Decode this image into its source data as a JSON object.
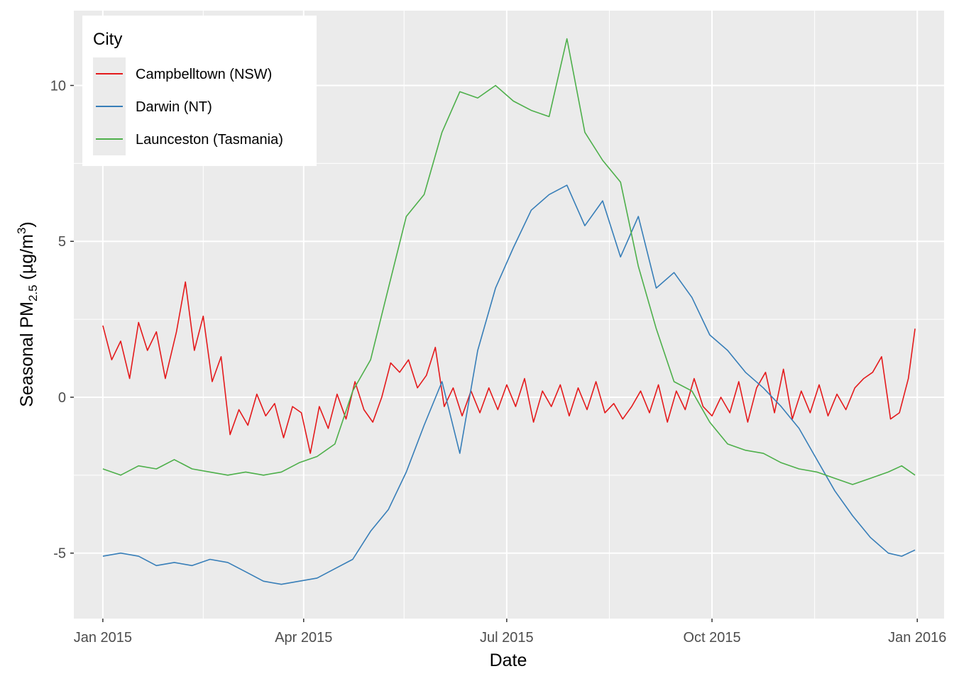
{
  "chart_data": {
    "type": "line",
    "xlabel": "Date",
    "ylabel": "Seasonal PM",
    "ylabel_sub": "2.5",
    "ylabel_unit_prefix": " (µg/m",
    "ylabel_unit_sup": "3",
    "ylabel_unit_suffix": ")",
    "xlim": [
      "2014-12-19",
      "2016-01-13"
    ],
    "ylim": [
      -7.1,
      12.4
    ],
    "x_ticks": [
      {
        "date": "2015-01-01",
        "label": "Jan 2015"
      },
      {
        "date": "2015-04-01",
        "label": "Apr 2015"
      },
      {
        "date": "2015-07-01",
        "label": "Jul 2015"
      },
      {
        "date": "2015-10-01",
        "label": "Oct 2015"
      },
      {
        "date": "2016-01-01",
        "label": "Jan 2016"
      }
    ],
    "x_minor_ticks": [
      "2015-02-15",
      "2015-05-16",
      "2015-08-16",
      "2015-11-16"
    ],
    "y_ticks": [
      -5,
      0,
      5,
      10
    ],
    "y_minor_ticks": [
      -2.5,
      2.5,
      7.5
    ],
    "grid": true,
    "legend": {
      "title": "City",
      "position": "top-left"
    },
    "series": [
      {
        "name": "Campbelltown (NSW)",
        "color": "#e41a1c",
        "points": [
          [
            "2015-01-01",
            2.3
          ],
          [
            "2015-01-05",
            1.2
          ],
          [
            "2015-01-09",
            1.8
          ],
          [
            "2015-01-13",
            0.6
          ],
          [
            "2015-01-17",
            2.4
          ],
          [
            "2015-01-21",
            1.5
          ],
          [
            "2015-01-25",
            2.1
          ],
          [
            "2015-01-29",
            0.6
          ],
          [
            "2015-02-03",
            2.1
          ],
          [
            "2015-02-07",
            3.7
          ],
          [
            "2015-02-11",
            1.5
          ],
          [
            "2015-02-15",
            2.6
          ],
          [
            "2015-02-19",
            0.5
          ],
          [
            "2015-02-23",
            1.3
          ],
          [
            "2015-02-27",
            -1.2
          ],
          [
            "2015-03-03",
            -0.4
          ],
          [
            "2015-03-07",
            -0.9
          ],
          [
            "2015-03-11",
            0.1
          ],
          [
            "2015-03-15",
            -0.6
          ],
          [
            "2015-03-19",
            -0.2
          ],
          [
            "2015-03-23",
            -1.3
          ],
          [
            "2015-03-27",
            -0.3
          ],
          [
            "2015-03-31",
            -0.5
          ],
          [
            "2015-04-04",
            -1.8
          ],
          [
            "2015-04-08",
            -0.3
          ],
          [
            "2015-04-12",
            -1.0
          ],
          [
            "2015-04-16",
            0.1
          ],
          [
            "2015-04-20",
            -0.7
          ],
          [
            "2015-04-24",
            0.5
          ],
          [
            "2015-04-28",
            -0.4
          ],
          [
            "2015-05-02",
            -0.8
          ],
          [
            "2015-05-06",
            0.0
          ],
          [
            "2015-05-10",
            1.1
          ],
          [
            "2015-05-14",
            0.8
          ],
          [
            "2015-05-18",
            1.2
          ],
          [
            "2015-05-22",
            0.3
          ],
          [
            "2015-05-26",
            0.7
          ],
          [
            "2015-05-30",
            1.6
          ],
          [
            "2015-06-03",
            -0.3
          ],
          [
            "2015-06-07",
            0.3
          ],
          [
            "2015-06-11",
            -0.6
          ],
          [
            "2015-06-15",
            0.2
          ],
          [
            "2015-06-19",
            -0.5
          ],
          [
            "2015-06-23",
            0.3
          ],
          [
            "2015-06-27",
            -0.4
          ],
          [
            "2015-07-01",
            0.4
          ],
          [
            "2015-07-05",
            -0.3
          ],
          [
            "2015-07-09",
            0.6
          ],
          [
            "2015-07-13",
            -0.8
          ],
          [
            "2015-07-17",
            0.2
          ],
          [
            "2015-07-21",
            -0.3
          ],
          [
            "2015-07-25",
            0.4
          ],
          [
            "2015-07-29",
            -0.6
          ],
          [
            "2015-08-02",
            0.3
          ],
          [
            "2015-08-06",
            -0.4
          ],
          [
            "2015-08-10",
            0.5
          ],
          [
            "2015-08-14",
            -0.5
          ],
          [
            "2015-08-18",
            -0.2
          ],
          [
            "2015-08-22",
            -0.7
          ],
          [
            "2015-08-26",
            -0.3
          ],
          [
            "2015-08-30",
            0.2
          ],
          [
            "2015-09-03",
            -0.5
          ],
          [
            "2015-09-07",
            0.4
          ],
          [
            "2015-09-11",
            -0.8
          ],
          [
            "2015-09-15",
            0.2
          ],
          [
            "2015-09-19",
            -0.4
          ],
          [
            "2015-09-23",
            0.6
          ],
          [
            "2015-09-27",
            -0.3
          ],
          [
            "2015-10-01",
            -0.6
          ],
          [
            "2015-10-05",
            0.0
          ],
          [
            "2015-10-09",
            -0.5
          ],
          [
            "2015-10-13",
            0.5
          ],
          [
            "2015-10-17",
            -0.8
          ],
          [
            "2015-10-21",
            0.3
          ],
          [
            "2015-10-25",
            0.8
          ],
          [
            "2015-10-29",
            -0.5
          ],
          [
            "2015-11-02",
            0.9
          ],
          [
            "2015-11-06",
            -0.7
          ],
          [
            "2015-11-10",
            0.2
          ],
          [
            "2015-11-14",
            -0.5
          ],
          [
            "2015-11-18",
            0.4
          ],
          [
            "2015-11-22",
            -0.6
          ],
          [
            "2015-11-26",
            0.1
          ],
          [
            "2015-11-30",
            -0.4
          ],
          [
            "2015-12-04",
            0.3
          ],
          [
            "2015-12-08",
            0.6
          ],
          [
            "2015-12-12",
            0.8
          ],
          [
            "2015-12-16",
            1.3
          ],
          [
            "2015-12-20",
            -0.7
          ],
          [
            "2015-12-24",
            -0.5
          ],
          [
            "2015-12-28",
            0.6
          ],
          [
            "2015-12-31",
            2.2
          ]
        ]
      },
      {
        "name": "Darwin (NT)",
        "color": "#377eb8",
        "points": [
          [
            "2015-01-01",
            -5.1
          ],
          [
            "2015-01-09",
            -5.0
          ],
          [
            "2015-01-17",
            -5.1
          ],
          [
            "2015-01-25",
            -5.4
          ],
          [
            "2015-02-02",
            -5.3
          ],
          [
            "2015-02-10",
            -5.4
          ],
          [
            "2015-02-18",
            -5.2
          ],
          [
            "2015-02-26",
            -5.3
          ],
          [
            "2015-03-06",
            -5.6
          ],
          [
            "2015-03-14",
            -5.9
          ],
          [
            "2015-03-22",
            -6.0
          ],
          [
            "2015-03-30",
            -5.9
          ],
          [
            "2015-04-07",
            -5.8
          ],
          [
            "2015-04-15",
            -5.5
          ],
          [
            "2015-04-23",
            -5.2
          ],
          [
            "2015-05-01",
            -4.3
          ],
          [
            "2015-05-09",
            -3.6
          ],
          [
            "2015-05-17",
            -2.4
          ],
          [
            "2015-05-25",
            -0.9
          ],
          [
            "2015-06-02",
            0.5
          ],
          [
            "2015-06-10",
            -1.8
          ],
          [
            "2015-06-18",
            1.5
          ],
          [
            "2015-06-26",
            3.5
          ],
          [
            "2015-07-04",
            4.8
          ],
          [
            "2015-07-12",
            6.0
          ],
          [
            "2015-07-20",
            6.5
          ],
          [
            "2015-07-28",
            6.8
          ],
          [
            "2015-08-05",
            5.5
          ],
          [
            "2015-08-13",
            6.3
          ],
          [
            "2015-08-21",
            4.5
          ],
          [
            "2015-08-29",
            5.8
          ],
          [
            "2015-09-06",
            3.5
          ],
          [
            "2015-09-14",
            4.0
          ],
          [
            "2015-09-22",
            3.2
          ],
          [
            "2015-09-30",
            2.0
          ],
          [
            "2015-10-08",
            1.5
          ],
          [
            "2015-10-16",
            0.8
          ],
          [
            "2015-10-24",
            0.3
          ],
          [
            "2015-11-01",
            -0.3
          ],
          [
            "2015-11-09",
            -1.0
          ],
          [
            "2015-11-17",
            -2.0
          ],
          [
            "2015-11-25",
            -3.0
          ],
          [
            "2015-12-03",
            -3.8
          ],
          [
            "2015-12-11",
            -4.5
          ],
          [
            "2015-12-19",
            -5.0
          ],
          [
            "2015-12-25",
            -5.1
          ],
          [
            "2015-12-31",
            -4.9
          ]
        ]
      },
      {
        "name": "Launceston (Tasmania)",
        "color": "#4daf4a",
        "points": [
          [
            "2015-01-01",
            -2.3
          ],
          [
            "2015-01-09",
            -2.5
          ],
          [
            "2015-01-17",
            -2.2
          ],
          [
            "2015-01-25",
            -2.3
          ],
          [
            "2015-02-02",
            -2.0
          ],
          [
            "2015-02-10",
            -2.3
          ],
          [
            "2015-02-18",
            -2.4
          ],
          [
            "2015-02-26",
            -2.5
          ],
          [
            "2015-03-06",
            -2.4
          ],
          [
            "2015-03-14",
            -2.5
          ],
          [
            "2015-03-22",
            -2.4
          ],
          [
            "2015-03-30",
            -2.1
          ],
          [
            "2015-04-07",
            -1.9
          ],
          [
            "2015-04-15",
            -1.5
          ],
          [
            "2015-04-23",
            0.2
          ],
          [
            "2015-05-01",
            1.2
          ],
          [
            "2015-05-09",
            3.5
          ],
          [
            "2015-05-17",
            5.8
          ],
          [
            "2015-05-25",
            6.5
          ],
          [
            "2015-06-02",
            8.5
          ],
          [
            "2015-06-10",
            9.8
          ],
          [
            "2015-06-18",
            9.6
          ],
          [
            "2015-06-26",
            10.0
          ],
          [
            "2015-07-04",
            9.5
          ],
          [
            "2015-07-12",
            9.2
          ],
          [
            "2015-07-20",
            9.0
          ],
          [
            "2015-07-28",
            11.5
          ],
          [
            "2015-08-05",
            8.5
          ],
          [
            "2015-08-13",
            7.6
          ],
          [
            "2015-08-21",
            6.9
          ],
          [
            "2015-08-29",
            4.2
          ],
          [
            "2015-09-06",
            2.2
          ],
          [
            "2015-09-14",
            0.5
          ],
          [
            "2015-09-22",
            0.2
          ],
          [
            "2015-09-30",
            -0.8
          ],
          [
            "2015-10-08",
            -1.5
          ],
          [
            "2015-10-16",
            -1.7
          ],
          [
            "2015-10-24",
            -1.8
          ],
          [
            "2015-11-01",
            -2.1
          ],
          [
            "2015-11-09",
            -2.3
          ],
          [
            "2015-11-17",
            -2.4
          ],
          [
            "2015-11-25",
            -2.6
          ],
          [
            "2015-12-03",
            -2.8
          ],
          [
            "2015-12-11",
            -2.6
          ],
          [
            "2015-12-19",
            -2.4
          ],
          [
            "2015-12-25",
            -2.2
          ],
          [
            "2015-12-31",
            -2.5
          ]
        ]
      }
    ]
  }
}
